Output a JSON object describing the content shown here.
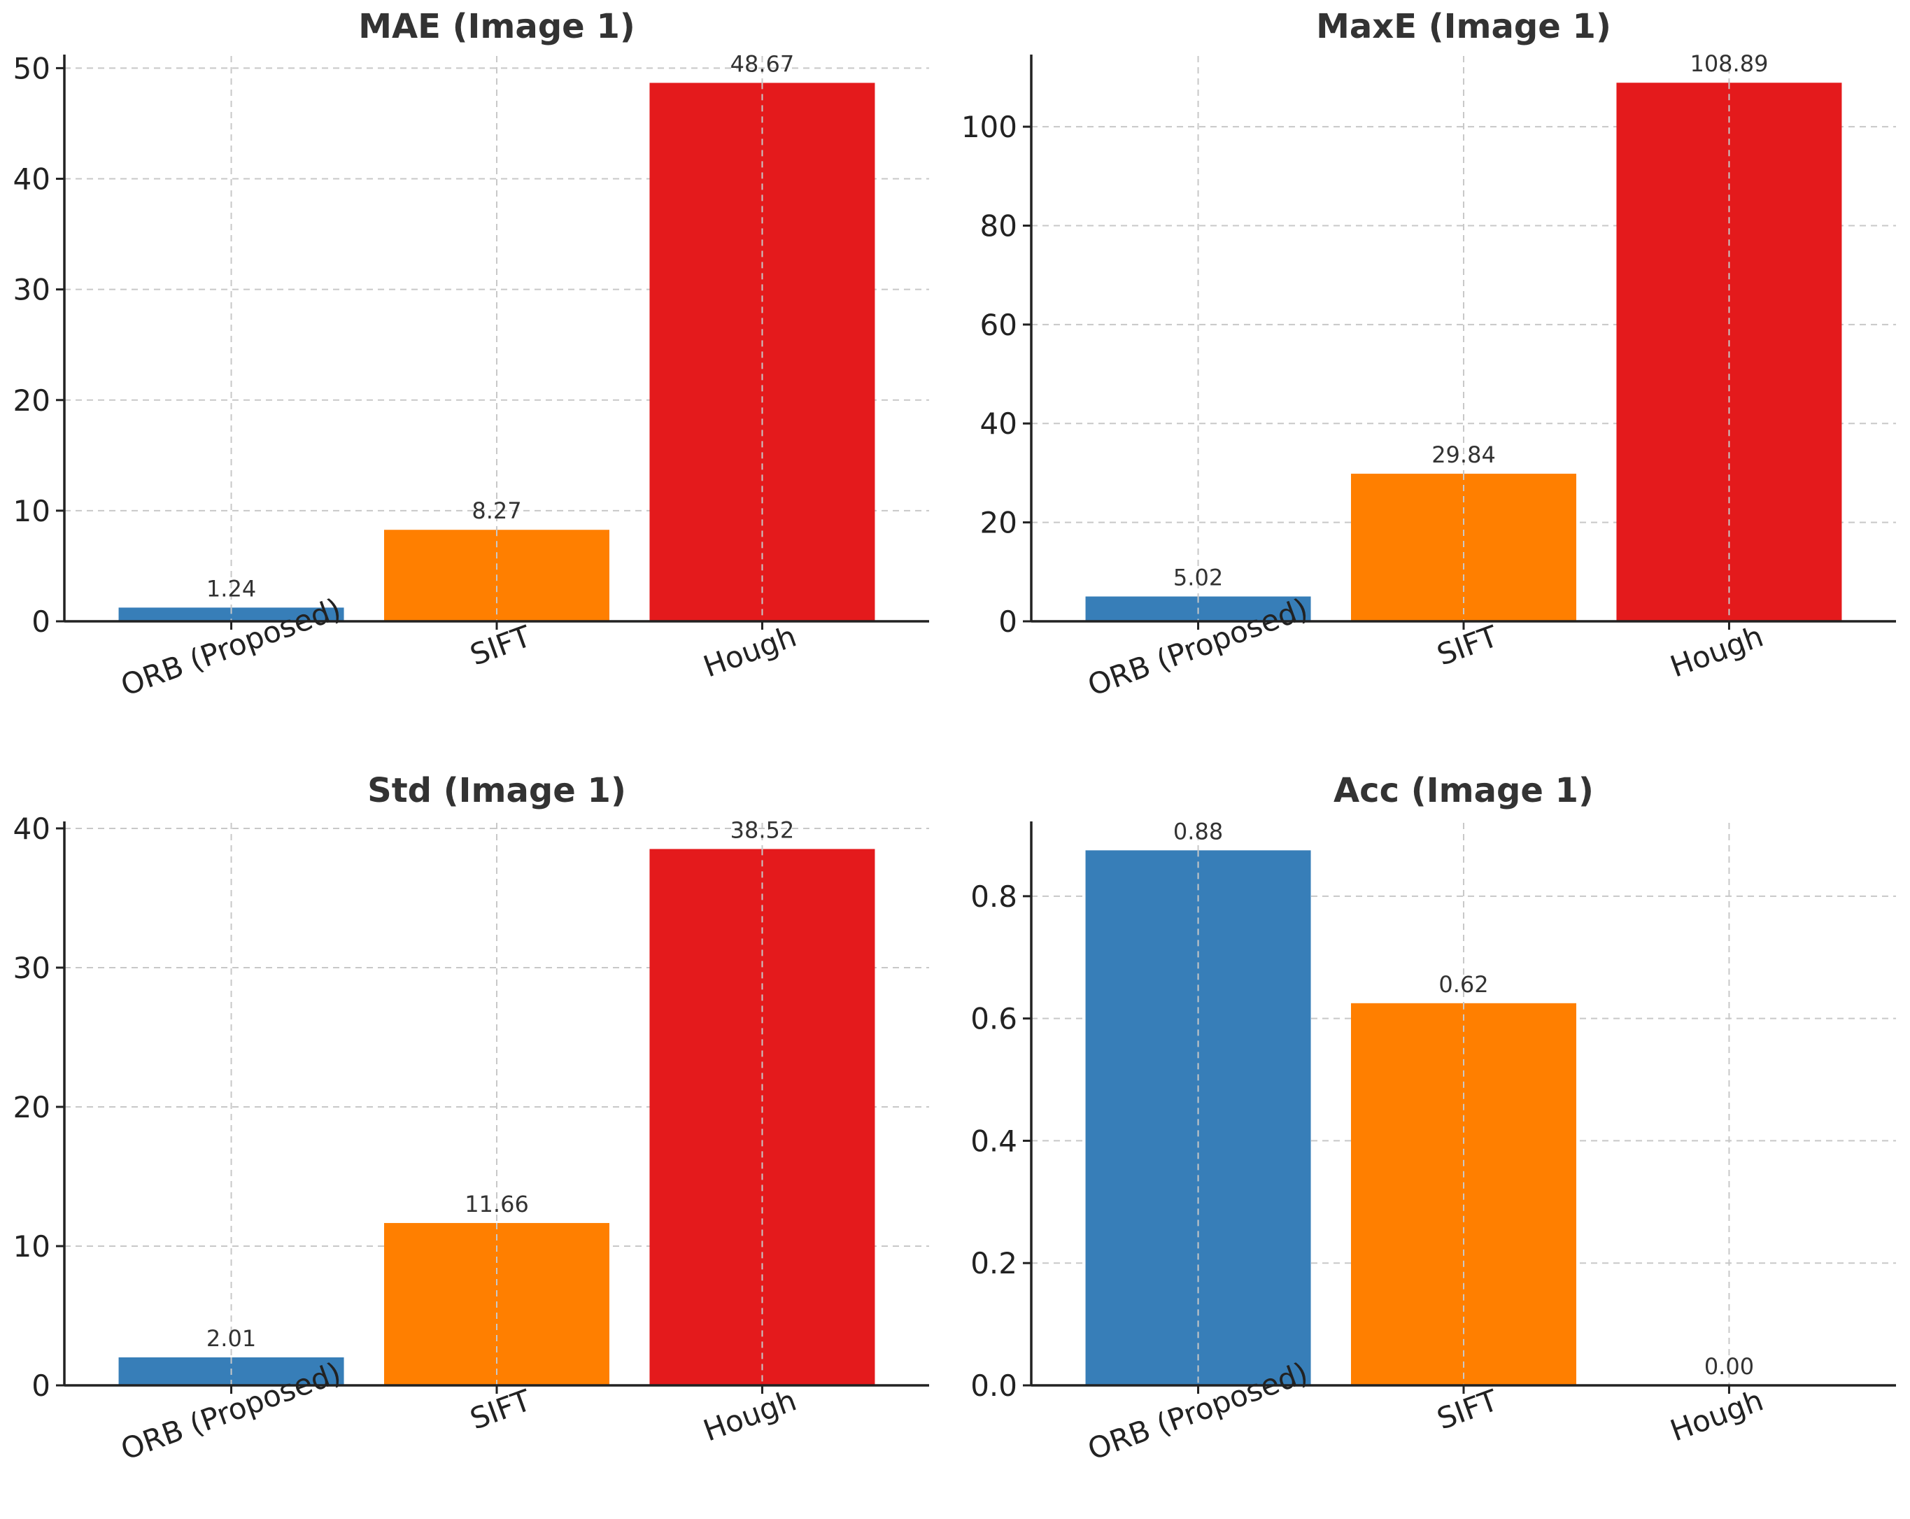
{
  "chart_data": [
    {
      "type": "bar",
      "title": "MAE (Image 1)",
      "categories": [
        "ORB (Proposed)",
        "SIFT",
        "Hough"
      ],
      "values": [
        1.24,
        8.27,
        48.67
      ],
      "data_labels": [
        "1.24",
        "8.27",
        "48.67"
      ],
      "colors": [
        "#377eb8",
        "#ff7f00",
        "#e41a1c"
      ],
      "ylim": [
        0,
        51.1
      ],
      "yticks": [
        0,
        10,
        20,
        30,
        40,
        50
      ],
      "ytick_labels": [
        "0",
        "10",
        "20",
        "30",
        "40",
        "50"
      ],
      "grid": true
    },
    {
      "type": "bar",
      "title": "MaxE (Image 1)",
      "categories": [
        "ORB (Proposed)",
        "SIFT",
        "Hough"
      ],
      "values": [
        5.02,
        29.84,
        108.89
      ],
      "data_labels": [
        "5.02",
        "29.84",
        "108.89"
      ],
      "colors": [
        "#377eb8",
        "#ff7f00",
        "#e41a1c"
      ],
      "ylim": [
        0,
        114.3
      ],
      "yticks": [
        0,
        20,
        40,
        60,
        80,
        100
      ],
      "ytick_labels": [
        "0",
        "20",
        "40",
        "60",
        "80",
        "100"
      ],
      "grid": true
    },
    {
      "type": "bar",
      "title": "Std (Image 1)",
      "categories": [
        "ORB (Proposed)",
        "SIFT",
        "Hough"
      ],
      "values": [
        2.01,
        11.66,
        38.52
      ],
      "data_labels": [
        "2.01",
        "11.66",
        "38.52"
      ],
      "colors": [
        "#377eb8",
        "#ff7f00",
        "#e41a1c"
      ],
      "ylim": [
        0,
        40.4
      ],
      "yticks": [
        0,
        10,
        20,
        30,
        40
      ],
      "ytick_labels": [
        "0",
        "10",
        "20",
        "30",
        "40"
      ],
      "grid": true
    },
    {
      "type": "bar",
      "title": "Acc (Image 1)",
      "categories": [
        "ORB (Proposed)",
        "SIFT",
        "Hough"
      ],
      "values": [
        0.875,
        0.625,
        0.0
      ],
      "data_labels": [
        "0.88",
        "0.62",
        "0.00"
      ],
      "colors": [
        "#377eb8",
        "#ff7f00",
        "#e41a1c"
      ],
      "ylim": [
        0,
        0.92
      ],
      "yticks": [
        0,
        0.2,
        0.4,
        0.6,
        0.8
      ],
      "ytick_labels": [
        "0.0",
        "0.2",
        "0.4",
        "0.6",
        "0.8"
      ],
      "grid": true
    }
  ]
}
